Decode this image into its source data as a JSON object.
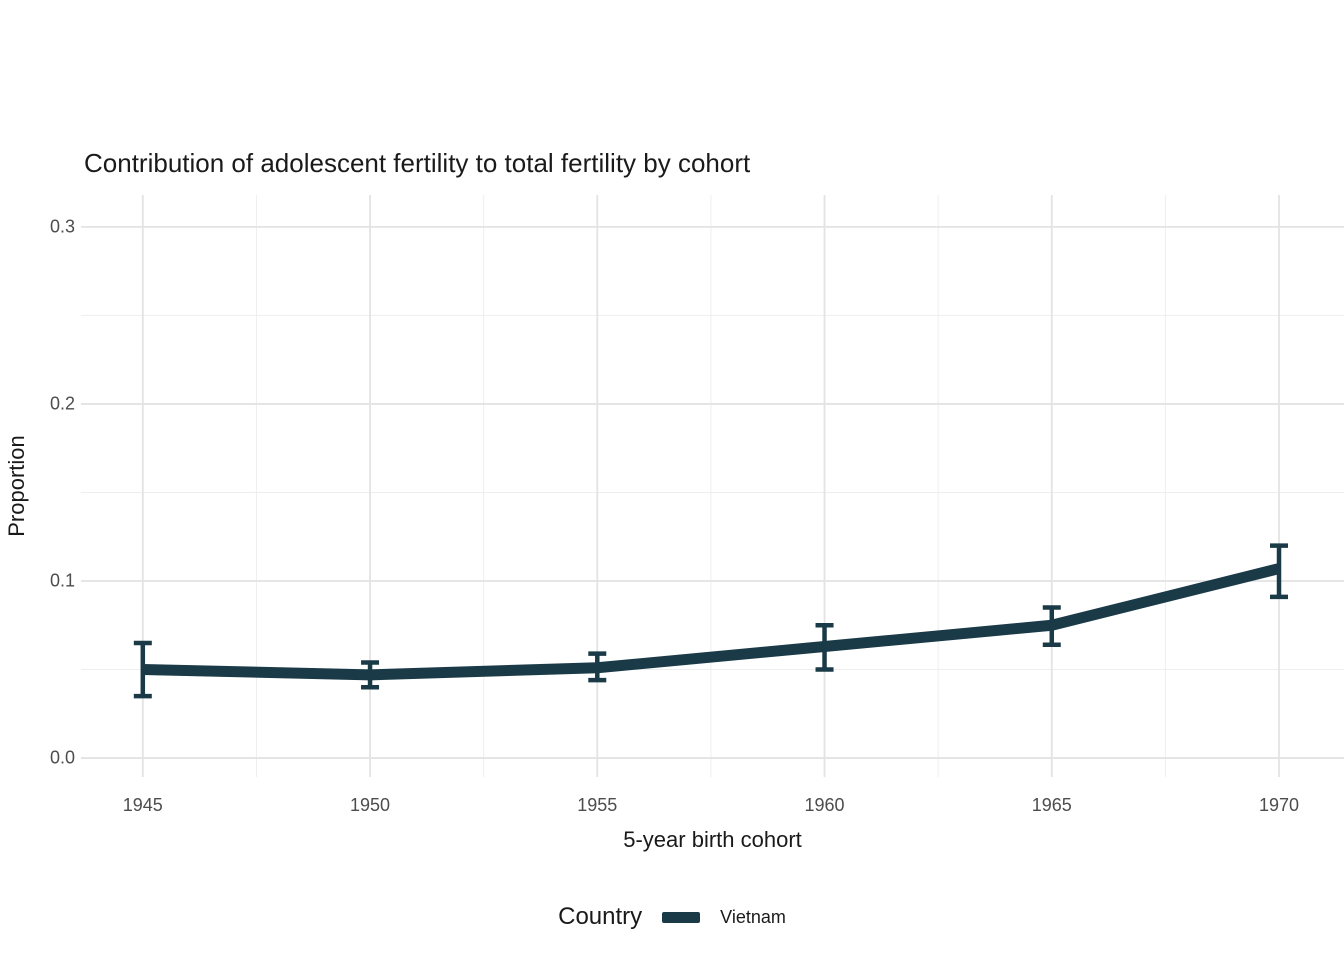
{
  "chart_data": {
    "type": "line",
    "title": "Contribution of adolescent fertility to total fertility by cohort",
    "xlabel": "5-year birth cohort",
    "ylabel": "Proportion",
    "x": [
      1945,
      1950,
      1955,
      1960,
      1965,
      1970
    ],
    "x_tick_labels": [
      "1945",
      "1950",
      "1955",
      "1960",
      "1965",
      "1970"
    ],
    "y_ticks": [
      0.0,
      0.1,
      0.2,
      0.3
    ],
    "y_tick_labels": [
      "0.0",
      "0.1",
      "0.2",
      "0.3"
    ],
    "y_minor_ticks": [
      0.05,
      0.15,
      0.25
    ],
    "x_minor_ticks": [
      1947.5,
      1952.5,
      1957.5,
      1962.5,
      1967.5
    ],
    "xlim": [
      1943.64,
      1971.43
    ],
    "ylim": [
      -0.0107,
      0.318
    ],
    "grid": true,
    "series": [
      {
        "name": "Vietnam",
        "color": "#1B3A47",
        "values": [
          0.05,
          0.047,
          0.051,
          0.063,
          0.075,
          0.107
        ],
        "ci_low": [
          0.035,
          0.04,
          0.044,
          0.05,
          0.064,
          0.091
        ],
        "ci_high": [
          0.065,
          0.054,
          0.059,
          0.075,
          0.085,
          0.12
        ]
      }
    ],
    "legend": {
      "title": "Country",
      "position": "bottom",
      "entries": [
        {
          "label": "Vietnam",
          "color": "#1B3A47"
        }
      ]
    },
    "colors": {
      "background": "#FFFFFF",
      "grid_major": "#E3E3E3",
      "grid_minor": "#EEEEEE",
      "tick_text": "#4D4D4D",
      "title_text": "#1A1A1A",
      "series_accent": "#1B3A47"
    }
  }
}
